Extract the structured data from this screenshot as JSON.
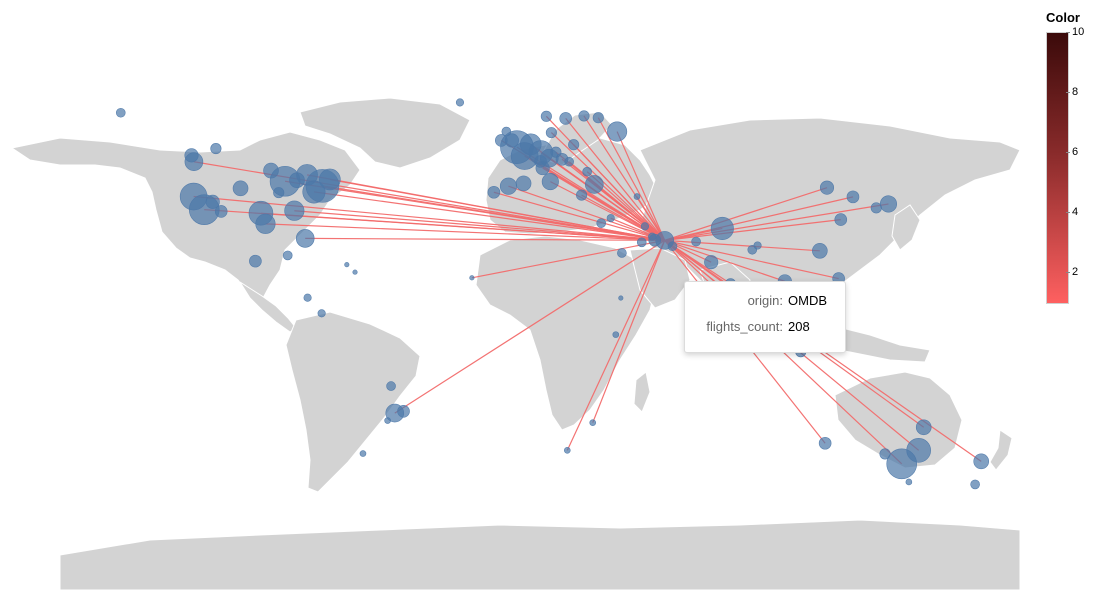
{
  "legend": {
    "title": "Color",
    "ticks": [
      10,
      8,
      6,
      4,
      2
    ],
    "min": 1,
    "max": 10,
    "color_low": "#fe6060",
    "color_high": "#3b0a0a"
  },
  "tooltip": {
    "rows": [
      {
        "key": "origin:",
        "value": "OMDB"
      },
      {
        "key": "flights_count:",
        "value": "208"
      }
    ]
  },
  "colors": {
    "land": "#d3d3d3",
    "airport": "#4c78a8",
    "route": "#f26b6b"
  },
  "hub": {
    "code": "OMDB",
    "lon": 55.36,
    "lat": 25.25
  },
  "routes": [
    {
      "lon": -122.4,
      "lat": 37.6
    },
    {
      "lon": -118.4,
      "lat": 33.9
    },
    {
      "lon": -97.0,
      "lat": 32.9
    },
    {
      "lon": -95.3,
      "lat": 29.9
    },
    {
      "lon": -87.9,
      "lat": 41.9
    },
    {
      "lon": -77.0,
      "lat": 38.9
    },
    {
      "lon": -73.8,
      "lat": 40.6
    },
    {
      "lon": -71.0,
      "lat": 42.4
    },
    {
      "lon": -80.3,
      "lat": 25.8
    },
    {
      "lon": -84.4,
      "lat": 33.6
    },
    {
      "lon": -79.6,
      "lat": 43.7
    },
    {
      "lon": -122.3,
      "lat": 47.4
    },
    {
      "lon": -46.5,
      "lat": -23.4
    },
    {
      "lon": 18.6,
      "lat": -33.9
    },
    {
      "lon": 28.2,
      "lat": -26.1
    },
    {
      "lon": -0.4,
      "lat": 51.5
    },
    {
      "lon": 2.5,
      "lat": 49.0
    },
    {
      "lon": 8.6,
      "lat": 50.0
    },
    {
      "lon": 4.8,
      "lat": 52.3
    },
    {
      "lon": 12.2,
      "lat": 41.8
    },
    {
      "lon": -3.6,
      "lat": 40.5
    },
    {
      "lon": 11.8,
      "lat": 48.4
    },
    {
      "lon": 16.6,
      "lat": 48.1
    },
    {
      "lon": 28.8,
      "lat": 41.0
    },
    {
      "lon": 37.4,
      "lat": 55.9
    },
    {
      "lon": 30.3,
      "lat": 59.8
    },
    {
      "lon": 24.0,
      "lat": 38.0
    },
    {
      "lon": 14.3,
      "lat": 50.1
    },
    {
      "lon": 21.0,
      "lat": 52.2
    },
    {
      "lon": 9.3,
      "lat": 45.6
    },
    {
      "lon": -6.3,
      "lat": 53.4
    },
    {
      "lon": -9.1,
      "lat": 38.8
    },
    {
      "lon": 18.0,
      "lat": 59.6
    },
    {
      "lon": 12.6,
      "lat": 55.6
    },
    {
      "lon": 24.9,
      "lat": 60.3
    },
    {
      "lon": 10.7,
      "lat": 60.2
    },
    {
      "lon": 19.3,
      "lat": 47.4
    },
    {
      "lon": 26.1,
      "lat": 44.6
    },
    {
      "lon": 44.9,
      "lat": 37.6
    },
    {
      "lon": 35.0,
      "lat": 31.5
    },
    {
      "lon": -17.4,
      "lat": 14.7
    },
    {
      "lon": 116.6,
      "lat": 40.1
    },
    {
      "lon": 121.8,
      "lat": 31.1
    },
    {
      "lon": 113.9,
      "lat": 22.3
    },
    {
      "lon": 139.8,
      "lat": 35.5
    },
    {
      "lon": 126.4,
      "lat": 37.5
    },
    {
      "lon": 103.9,
      "lat": 1.4
    },
    {
      "lon": 100.7,
      "lat": 13.7
    },
    {
      "lon": 106.7,
      "lat": -6.1
    },
    {
      "lon": 151.2,
      "lat": -33.9
    },
    {
      "lon": 144.8,
      "lat": -37.7
    },
    {
      "lon": 153.1,
      "lat": -27.4
    },
    {
      "lon": 174.8,
      "lat": -37.0
    },
    {
      "lon": 115.9,
      "lat": -31.9
    },
    {
      "lon": 121.0,
      "lat": 14.5
    },
    {
      "lon": 77.1,
      "lat": 28.6
    },
    {
      "lon": 72.9,
      "lat": 19.1
    }
  ],
  "airports": [
    {
      "lon": 55.36,
      "lat": 25.25,
      "s": 12
    },
    {
      "lon": 51.6,
      "lat": 25.3,
      "s": 8
    },
    {
      "lon": 46.7,
      "lat": 24.7,
      "s": 6
    },
    {
      "lon": 58.3,
      "lat": 23.6,
      "s": 6
    },
    {
      "lon": 67.2,
      "lat": 24.9,
      "s": 6
    },
    {
      "lon": 77.1,
      "lat": 28.6,
      "s": 15
    },
    {
      "lon": 72.9,
      "lat": 19.1,
      "s": 9
    },
    {
      "lon": 80.2,
      "lat": 13.0,
      "s": 7
    },
    {
      "lon": 88.4,
      "lat": 22.6,
      "s": 6
    },
    {
      "lon": 90.4,
      "lat": 23.8,
      "s": 5
    },
    {
      "lon": 100.7,
      "lat": 13.7,
      "s": 9
    },
    {
      "lon": 113.9,
      "lat": 22.3,
      "s": 10
    },
    {
      "lon": 121.8,
      "lat": 31.1,
      "s": 8
    },
    {
      "lon": 116.6,
      "lat": 40.1,
      "s": 9
    },
    {
      "lon": 126.4,
      "lat": 37.5,
      "s": 8
    },
    {
      "lon": 135.2,
      "lat": 34.4,
      "s": 7
    },
    {
      "lon": 139.8,
      "lat": 35.5,
      "s": 11
    },
    {
      "lon": 121.0,
      "lat": 14.5,
      "s": 8
    },
    {
      "lon": 103.9,
      "lat": 1.4,
      "s": 9
    },
    {
      "lon": 106.7,
      "lat": -6.1,
      "s": 7
    },
    {
      "lon": 151.2,
      "lat": -33.9,
      "s": 16
    },
    {
      "lon": 144.8,
      "lat": -37.7,
      "s": 20
    },
    {
      "lon": 153.1,
      "lat": -27.4,
      "s": 10
    },
    {
      "lon": 138.5,
      "lat": -34.9,
      "s": 7
    },
    {
      "lon": 115.9,
      "lat": -31.9,
      "s": 8
    },
    {
      "lon": 174.8,
      "lat": -37.0,
      "s": 10
    },
    {
      "lon": 172.5,
      "lat": -43.5,
      "s": 6
    },
    {
      "lon": 147.5,
      "lat": -42.8,
      "s": 4
    },
    {
      "lon": -122.4,
      "lat": 37.6,
      "s": 18
    },
    {
      "lon": -118.4,
      "lat": 33.9,
      "s": 20
    },
    {
      "lon": -122.3,
      "lat": 47.4,
      "s": 12
    },
    {
      "lon": -115.2,
      "lat": 36.1,
      "s": 9
    },
    {
      "lon": -112.0,
      "lat": 33.4,
      "s": 8
    },
    {
      "lon": -104.7,
      "lat": 39.9,
      "s": 10
    },
    {
      "lon": -97.0,
      "lat": 32.9,
      "s": 16
    },
    {
      "lon": -95.3,
      "lat": 29.9,
      "s": 13
    },
    {
      "lon": -87.9,
      "lat": 41.9,
      "s": 20
    },
    {
      "lon": -84.4,
      "lat": 33.6,
      "s": 13
    },
    {
      "lon": -80.3,
      "lat": 25.8,
      "s": 12
    },
    {
      "lon": -77.0,
      "lat": 38.9,
      "s": 15
    },
    {
      "lon": -73.8,
      "lat": 40.6,
      "s": 22
    },
    {
      "lon": -71.0,
      "lat": 42.4,
      "s": 14
    },
    {
      "lon": -79.6,
      "lat": 43.7,
      "s": 14
    },
    {
      "lon": -93.2,
      "lat": 44.9,
      "s": 10
    },
    {
      "lon": -83.4,
      "lat": 42.2,
      "s": 10
    },
    {
      "lon": -90.3,
      "lat": 38.7,
      "s": 7
    },
    {
      "lon": -123.2,
      "lat": 49.2,
      "s": 9
    },
    {
      "lon": -114.0,
      "lat": 51.1,
      "s": 7
    },
    {
      "lon": -149.9,
      "lat": 61.2,
      "s": 6
    },
    {
      "lon": -99.1,
      "lat": 19.4,
      "s": 8
    },
    {
      "lon": -86.9,
      "lat": 21.0,
      "s": 6
    },
    {
      "lon": -79.4,
      "lat": 9.1,
      "s": 5
    },
    {
      "lon": -74.1,
      "lat": 4.7,
      "s": 5
    },
    {
      "lon": -64.6,
      "lat": 18.4,
      "s": 3
    },
    {
      "lon": -61.5,
      "lat": 16.3,
      "s": 3
    },
    {
      "lon": -46.5,
      "lat": -23.4,
      "s": 12
    },
    {
      "lon": -43.2,
      "lat": -22.9,
      "s": 8
    },
    {
      "lon": -49.2,
      "lat": -25.5,
      "s": 4
    },
    {
      "lon": -47.9,
      "lat": -15.8,
      "s": 6
    },
    {
      "lon": -58.5,
      "lat": -34.8,
      "s": 4
    },
    {
      "lon": -0.4,
      "lat": 51.5,
      "s": 22
    },
    {
      "lon": 2.5,
      "lat": 49.0,
      "s": 18
    },
    {
      "lon": 8.6,
      "lat": 50.0,
      "s": 16
    },
    {
      "lon": 4.8,
      "lat": 52.3,
      "s": 14
    },
    {
      "lon": 11.8,
      "lat": 48.4,
      "s": 12
    },
    {
      "lon": 12.2,
      "lat": 41.8,
      "s": 11
    },
    {
      "lon": -3.6,
      "lat": 40.5,
      "s": 11
    },
    {
      "lon": 2.1,
      "lat": 41.3,
      "s": 10
    },
    {
      "lon": 9.3,
      "lat": 45.6,
      "s": 9
    },
    {
      "lon": 16.6,
      "lat": 48.1,
      "s": 8
    },
    {
      "lon": 8.5,
      "lat": 47.5,
      "s": 8
    },
    {
      "lon": 14.3,
      "lat": 50.1,
      "s": 7
    },
    {
      "lon": 21.0,
      "lat": 52.2,
      "s": 7
    },
    {
      "lon": 12.6,
      "lat": 55.6,
      "s": 7
    },
    {
      "lon": 18.0,
      "lat": 59.6,
      "s": 8
    },
    {
      "lon": 10.7,
      "lat": 60.2,
      "s": 7
    },
    {
      "lon": 24.9,
      "lat": 60.3,
      "s": 7
    },
    {
      "lon": 30.3,
      "lat": 59.8,
      "s": 7
    },
    {
      "lon": 37.4,
      "lat": 55.9,
      "s": 13
    },
    {
      "lon": 28.8,
      "lat": 41.0,
      "s": 12
    },
    {
      "lon": 24.0,
      "lat": 38.0,
      "s": 7
    },
    {
      "lon": 26.1,
      "lat": 44.6,
      "s": 6
    },
    {
      "lon": 19.3,
      "lat": 47.4,
      "s": 6
    },
    {
      "lon": -6.3,
      "lat": 53.4,
      "s": 8
    },
    {
      "lon": -9.1,
      "lat": 38.8,
      "s": 8
    },
    {
      "lon": -2.3,
      "lat": 53.4,
      "s": 9
    },
    {
      "lon": -4.4,
      "lat": 55.9,
      "s": 6
    },
    {
      "lon": -21.9,
      "lat": 64.1,
      "s": 5
    },
    {
      "lon": 44.9,
      "lat": 37.6,
      "s": 4
    },
    {
      "lon": 35.0,
      "lat": 31.5,
      "s": 5
    },
    {
      "lon": 31.4,
      "lat": 30.1,
      "s": 6
    },
    {
      "lon": 39.2,
      "lat": 21.7,
      "s": 6
    },
    {
      "lon": 50.6,
      "lat": 26.3,
      "s": 5
    },
    {
      "lon": 47.9,
      "lat": 29.2,
      "s": 5
    },
    {
      "lon": -17.4,
      "lat": 14.7,
      "s": 3
    },
    {
      "lon": 18.6,
      "lat": -33.9,
      "s": 4
    },
    {
      "lon": 28.2,
      "lat": -26.1,
      "s": 4
    },
    {
      "lon": 36.9,
      "lat": -1.3,
      "s": 4
    },
    {
      "lon": 38.8,
      "lat": 9.0,
      "s": 3
    }
  ]
}
